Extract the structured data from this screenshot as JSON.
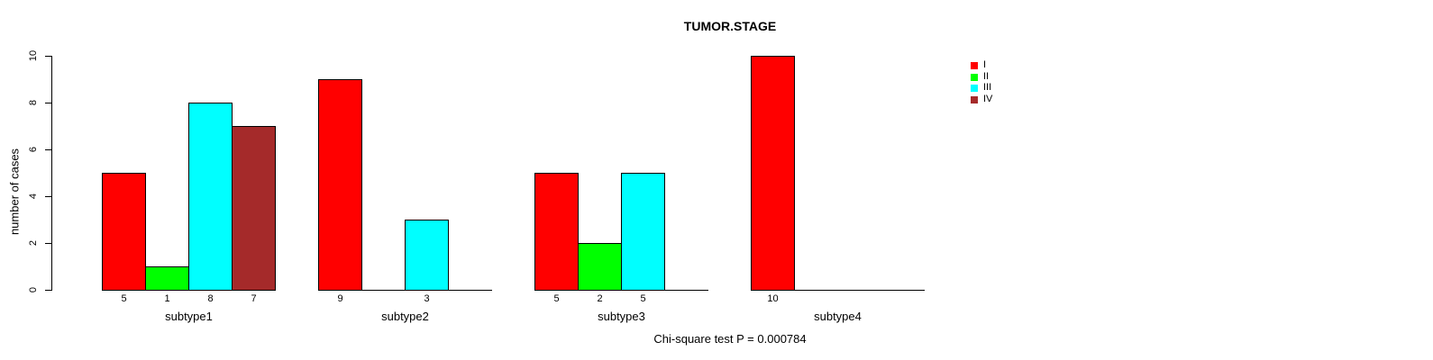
{
  "chart_data": {
    "type": "bar",
    "title": "TUMOR.STAGE",
    "xlabel": "",
    "ylabel": "number of cases",
    "ylim": [
      0,
      10
    ],
    "yticks": [
      0,
      2,
      4,
      6,
      8,
      10
    ],
    "categories": [
      "subtype1",
      "subtype2",
      "subtype3",
      "subtype4"
    ],
    "series": [
      {
        "name": "I",
        "color": "#FF0000",
        "values": [
          5,
          9,
          5,
          10
        ]
      },
      {
        "name": "II",
        "color": "#00FF00",
        "values": [
          1,
          0,
          2,
          0
        ]
      },
      {
        "name": "III",
        "color": "#00FFFF",
        "values": [
          8,
          3,
          5,
          0
        ]
      },
      {
        "name": "IV",
        "color": "#A52A2A",
        "values": [
          7,
          0,
          0,
          0
        ]
      }
    ],
    "bar_value_labels_rule": "value shown under each drawn bar; zero-value bars not drawn and unlabeled",
    "legend_position": "top-right",
    "grid": false,
    "background": "#FFFFFF",
    "axis_color": "#000000",
    "annotation": "Chi-square test P = 0.000784"
  }
}
